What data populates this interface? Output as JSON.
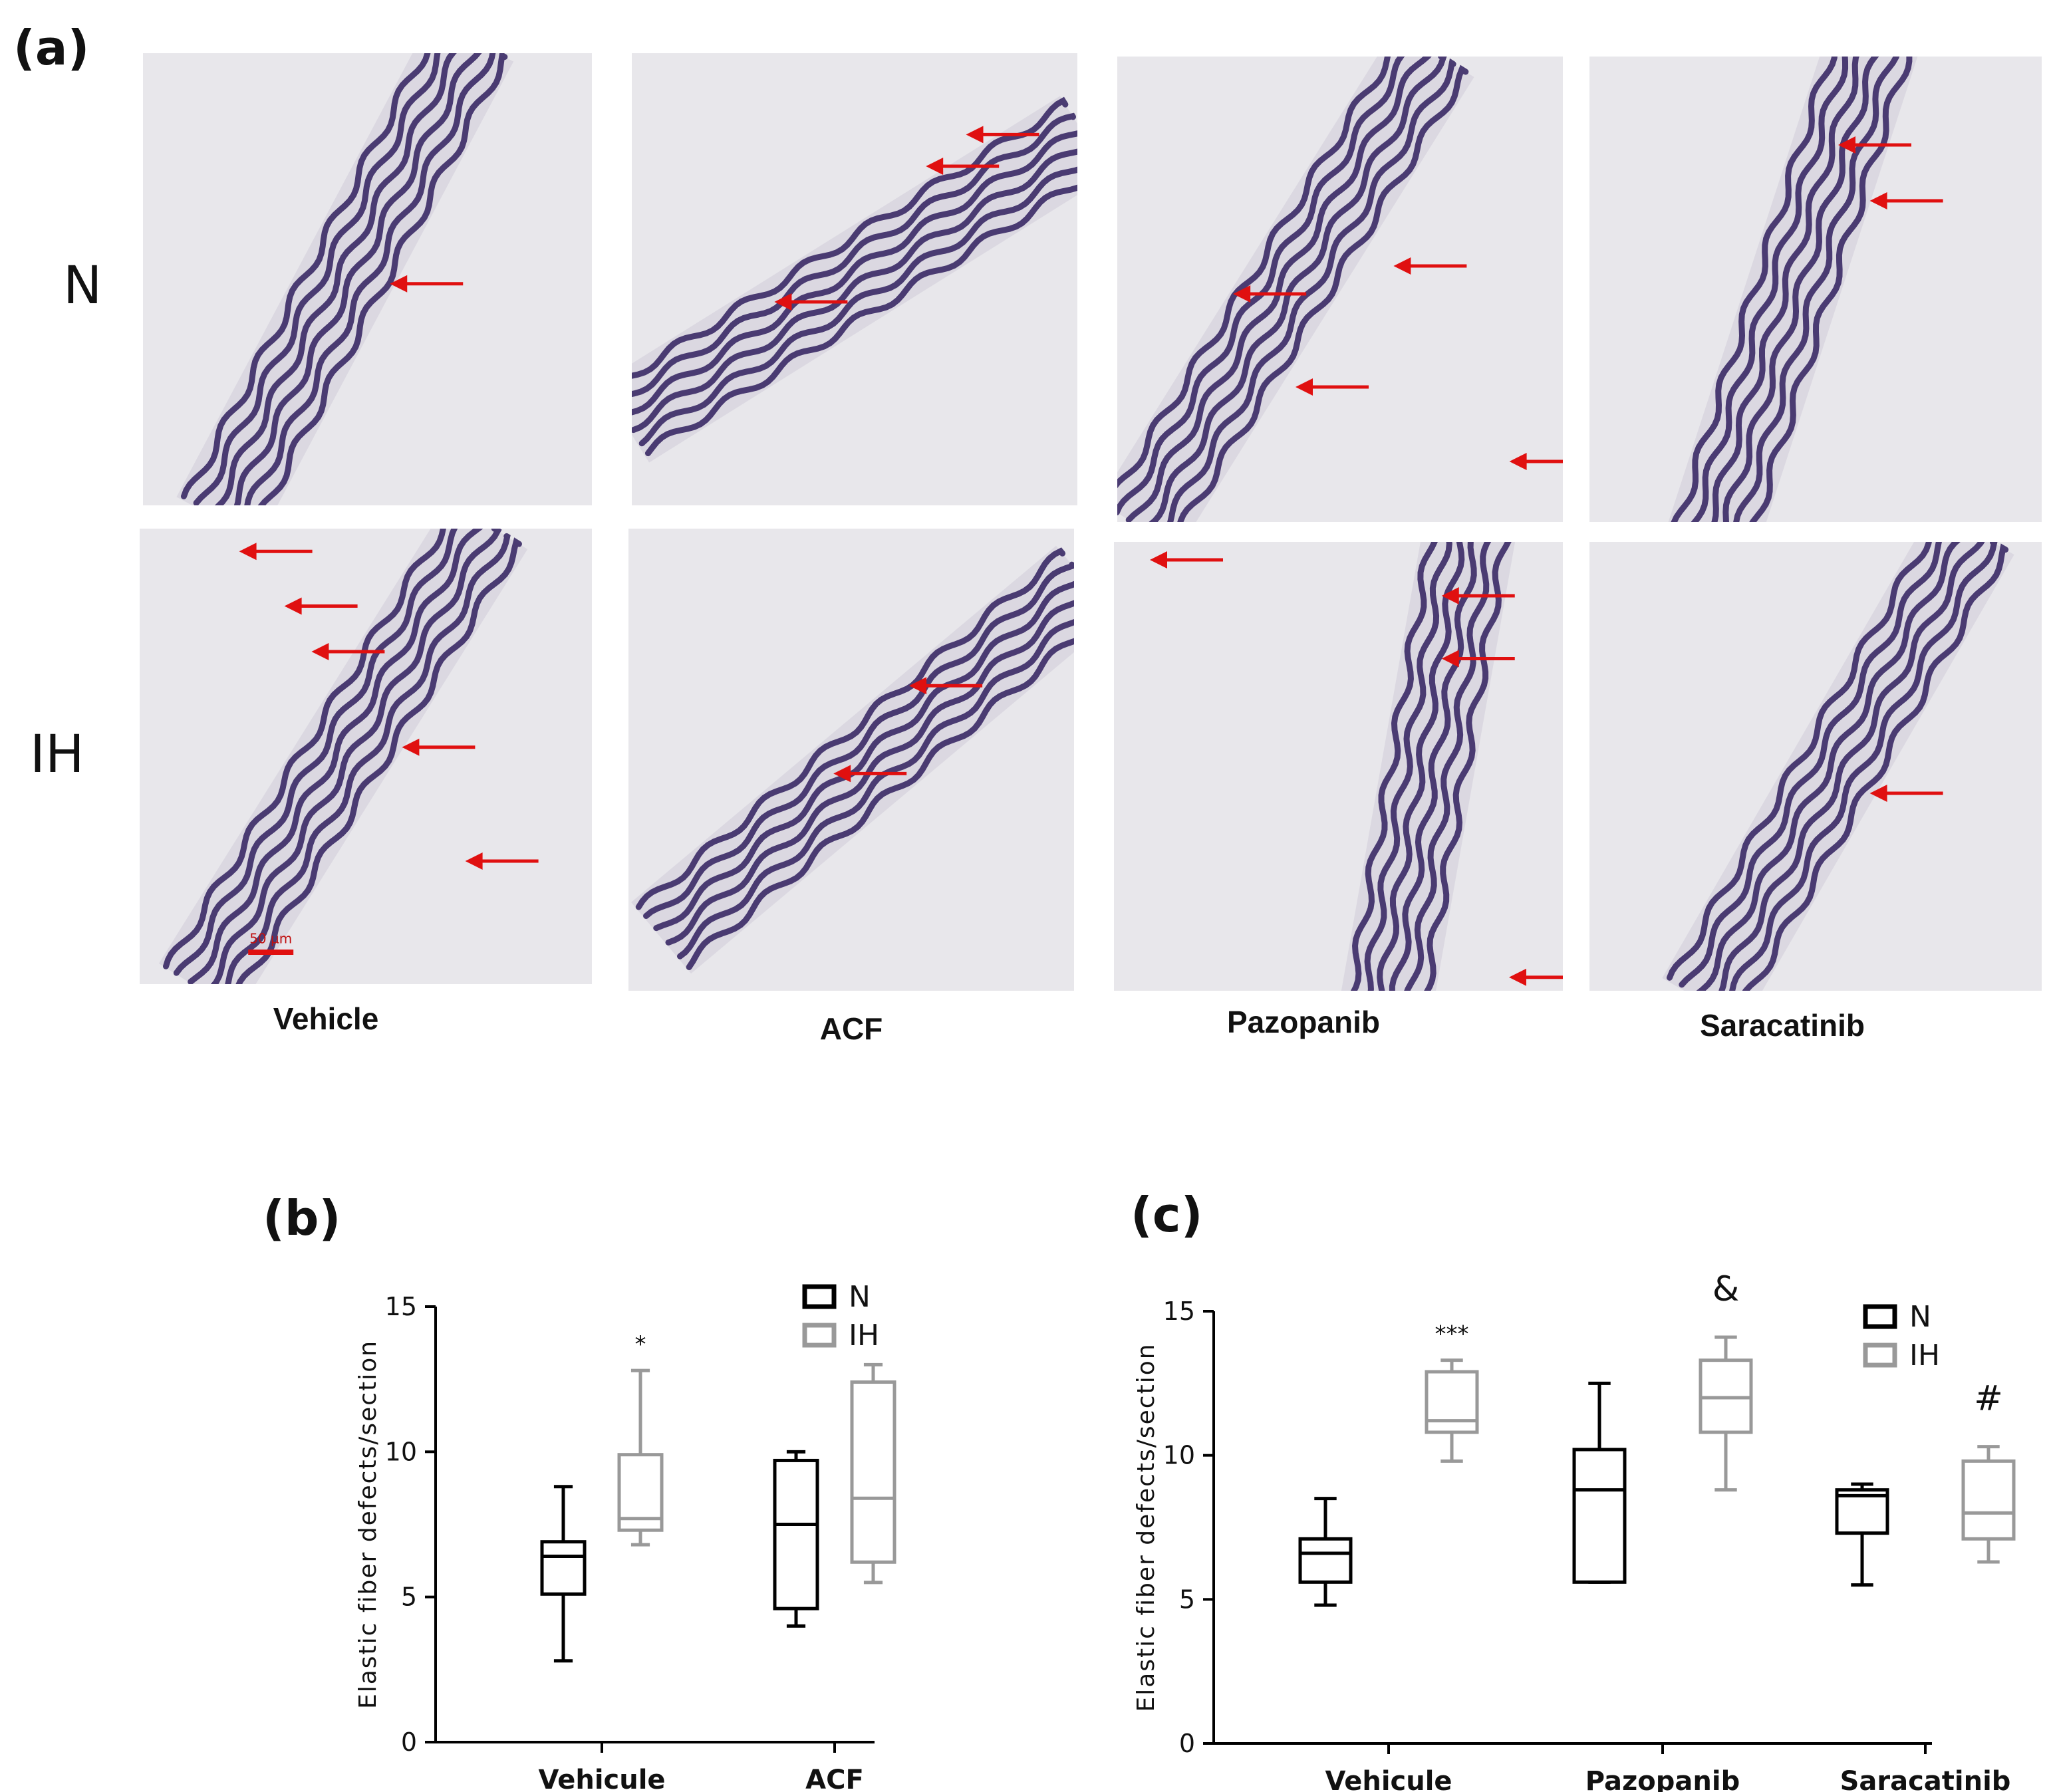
{
  "figure": {
    "panel_a": {
      "label": "(a)",
      "rows": [
        "N",
        "IH"
      ],
      "columns": [
        "Vehicle",
        "ACF",
        "Pazopanib",
        "Saracatinib"
      ],
      "scale_bar": "50 µm",
      "image_subject": "elastin-stained arterial wall cross-sections with red arrows marking elastic fiber breaks"
    },
    "panel_b": {
      "label": "(b)"
    },
    "panel_c": {
      "label": "(c)"
    }
  },
  "colors": {
    "N": "#000000",
    "IH": "#999999",
    "arrow": "#e01010",
    "stain": "#3a2a66"
  },
  "chart_data": [
    {
      "type": "box",
      "panel": "(b)",
      "ylabel": "Elastic fiber defects/section",
      "ylim": [
        0,
        15
      ],
      "yticks": [
        0,
        5,
        10,
        15
      ],
      "categories": [
        "Vehicule",
        "ACF"
      ],
      "legend": {
        "position": "top-right",
        "entries": [
          "N",
          "IH"
        ]
      },
      "series": [
        {
          "name": "N",
          "boxes": [
            {
              "min": 2.8,
              "q1": 5.1,
              "median": 6.4,
              "q3": 6.9,
              "max": 8.8
            },
            {
              "min": 4.0,
              "q1": 4.6,
              "median": 7.5,
              "q3": 9.7,
              "max": 10.0
            }
          ]
        },
        {
          "name": "IH",
          "boxes": [
            {
              "min": 6.8,
              "q1": 7.3,
              "median": 7.7,
              "q3": 9.9,
              "max": 12.8
            },
            {
              "min": 5.5,
              "q1": 6.2,
              "median": 8.4,
              "q3": 12.4,
              "max": 13.0
            }
          ]
        }
      ],
      "annotations": [
        {
          "category": "Vehicule",
          "series": "IH",
          "text": "*"
        }
      ]
    },
    {
      "type": "box",
      "panel": "(c)",
      "ylabel": "Elastic fiber defects/section",
      "ylim": [
        0,
        15
      ],
      "yticks": [
        0,
        5,
        10,
        15
      ],
      "categories": [
        "Vehicule",
        "Pazopanib",
        "Saracatinib"
      ],
      "legend": {
        "position": "top-right",
        "entries": [
          "N",
          "IH"
        ]
      },
      "series": [
        {
          "name": "N",
          "boxes": [
            {
              "min": 4.8,
              "q1": 5.6,
              "median": 6.6,
              "q3": 7.1,
              "max": 8.5
            },
            {
              "min": 5.6,
              "q1": 5.6,
              "median": 8.8,
              "q3": 10.2,
              "max": 12.5
            },
            {
              "min": 5.5,
              "q1": 7.3,
              "median": 8.6,
              "q3": 8.8,
              "max": 9.0
            }
          ]
        },
        {
          "name": "IH",
          "boxes": [
            {
              "min": 9.8,
              "q1": 10.8,
              "median": 11.2,
              "q3": 12.9,
              "max": 13.3
            },
            {
              "min": 8.8,
              "q1": 10.8,
              "median": 12.0,
              "q3": 13.3,
              "max": 14.1
            },
            {
              "min": 6.3,
              "q1": 7.1,
              "median": 8.0,
              "q3": 9.8,
              "max": 10.3
            }
          ]
        }
      ],
      "annotations": [
        {
          "category": "Vehicule",
          "series": "IH",
          "text": "***"
        },
        {
          "category": "Pazopanib",
          "series": "IH",
          "text": "&"
        },
        {
          "category": "Saracatinib",
          "series": "IH",
          "text": "#"
        }
      ]
    }
  ]
}
